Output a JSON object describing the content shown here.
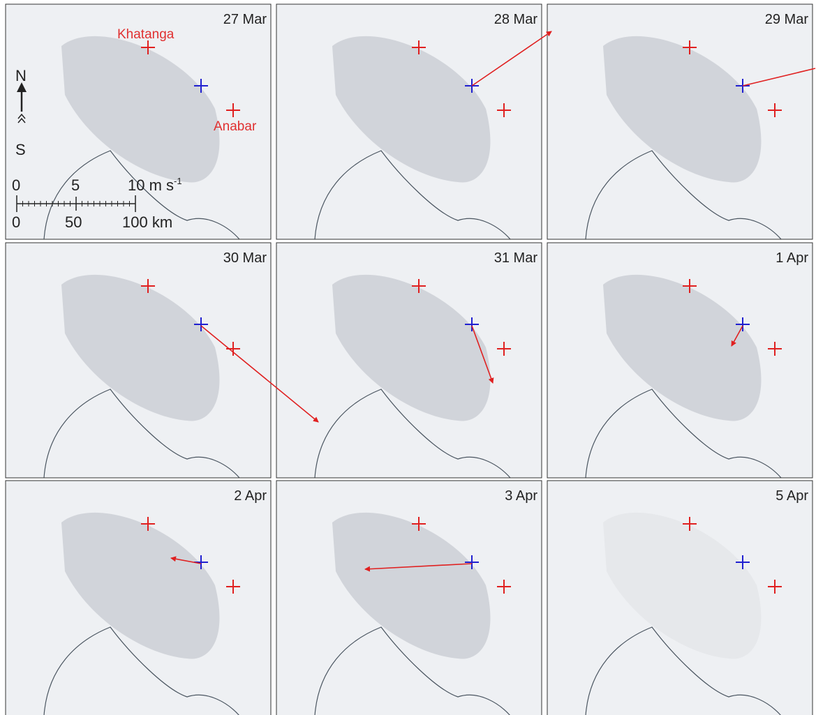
{
  "panels": [
    {
      "date": "27 Mar"
    },
    {
      "date": "28 Mar"
    },
    {
      "date": "29 Mar"
    },
    {
      "date": "30 Mar"
    },
    {
      "date": "31 Mar"
    },
    {
      "date": "1 Apr"
    },
    {
      "date": "2 Apr"
    },
    {
      "date": "3 Apr"
    },
    {
      "date": "5 Apr"
    }
  ],
  "places": {
    "north": "Khatanga",
    "south": "Anabar"
  },
  "compass": {
    "north": "N",
    "south": "S"
  },
  "scale_bar": {
    "speed_labels": [
      "0",
      "5",
      "10 m s"
    ],
    "speed_exponent": "-1",
    "distance_labels": [
      "0",
      "50",
      "100 km"
    ]
  }
}
